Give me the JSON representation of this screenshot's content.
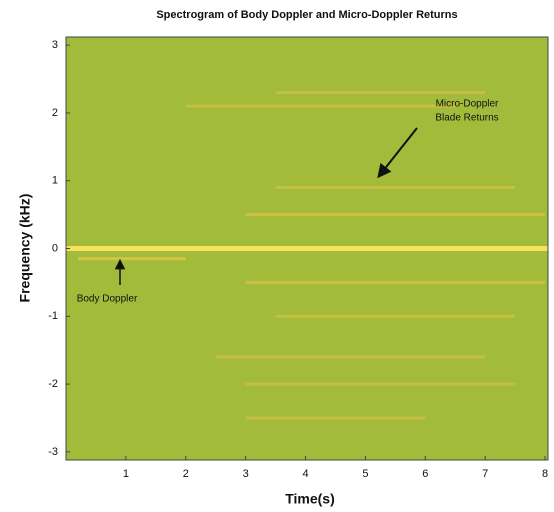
{
  "chart_data": {
    "type": "spectrogram",
    "title": "Spectrogram of Body Doppler and Micro-Doppler Returns",
    "x_label": "Time(s)",
    "y_label": "Frequency (kHz)",
    "xlim": [
      0,
      8.05
    ],
    "ylim": [
      -3.12,
      3.12
    ],
    "xticks": [
      1,
      2,
      3,
      4,
      5,
      6,
      7,
      8
    ],
    "yticks": [
      -3,
      -2,
      -1,
      0,
      1,
      2,
      3
    ],
    "background_color": "#a3bb3b",
    "streaks": [
      {
        "frequency": 0,
        "start": 0,
        "end": 8.05,
        "color": "#f6e35a"
      },
      {
        "frequency": -0.15,
        "start": 0.2,
        "end": 2.0,
        "color": "#e3c842"
      },
      {
        "frequency": 0.5,
        "start": 3.0,
        "end": 8.0,
        "color": "#d9c443"
      },
      {
        "frequency": 0.9,
        "start": 3.5,
        "end": 7.5,
        "color": "#d2c143"
      },
      {
        "frequency": 2.1,
        "start": 2.0,
        "end": 6.5,
        "color": "#d2c143"
      },
      {
        "frequency": 2.3,
        "start": 3.5,
        "end": 7.0,
        "color": "#cfc043"
      },
      {
        "frequency": -0.5,
        "start": 3.0,
        "end": 8.0,
        "color": "#d9c443"
      },
      {
        "frequency": -1.0,
        "start": 3.5,
        "end": 7.5,
        "color": "#d2c143"
      },
      {
        "frequency": -1.6,
        "start": 2.5,
        "end": 7.0,
        "color": "#cfc043"
      },
      {
        "frequency": -2.0,
        "start": 3.0,
        "end": 7.5,
        "color": "#cfc043"
      },
      {
        "frequency": -2.5,
        "start": 3.0,
        "end": 6.0,
        "color": "#cdbf43"
      }
    ],
    "annotations": [
      "Micro-Doppler",
      "Blade Returns",
      "Body Doppler"
    ]
  }
}
